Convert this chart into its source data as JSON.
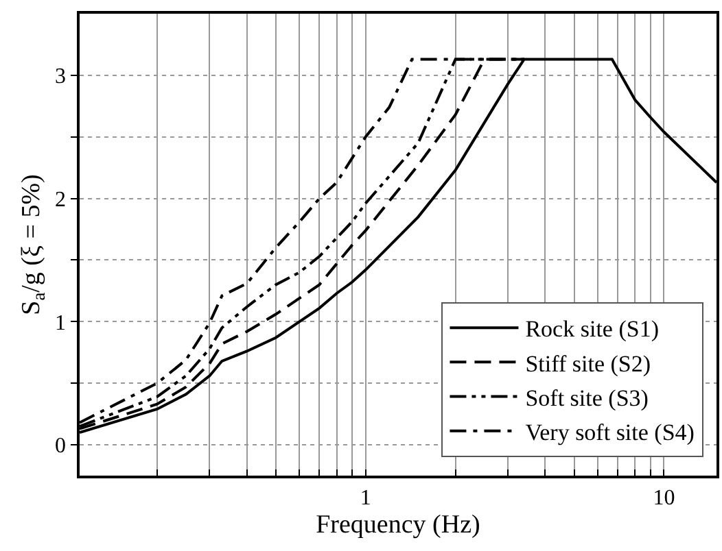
{
  "chart_data": {
    "type": "line",
    "xlabel": "Frequency (Hz)",
    "ylabel": "S$_{a}$/g (ξ = 5%)",
    "log": "x",
    "xlim": [
      0.11,
      15
    ],
    "ylim": [
      -0.25,
      3.5
    ],
    "xticks": [
      {
        "value": 0.2,
        "label": null
      },
      {
        "value": 0.3,
        "label": null
      },
      {
        "value": 0.4,
        "label": null
      },
      {
        "value": 0.5,
        "label": null
      },
      {
        "value": 0.6,
        "label": null
      },
      {
        "value": 0.7,
        "label": null
      },
      {
        "value": 0.8,
        "label": null
      },
      {
        "value": 0.9,
        "label": null
      },
      1,
      {
        "value": 2,
        "label": null
      },
      {
        "value": 3,
        "label": null
      },
      {
        "value": 4,
        "label": null
      },
      {
        "value": 5,
        "label": null
      },
      {
        "value": 6,
        "label": null
      },
      {
        "value": 7,
        "label": null
      },
      {
        "value": 8,
        "label": null
      },
      {
        "value": 9,
        "label": null
      },
      10
    ],
    "yticks": [
      0,
      {
        "value": 0.5,
        "label": null
      },
      1,
      {
        "value": 1.5,
        "label": null
      },
      2,
      {
        "value": 2.5,
        "label": null
      },
      3
    ],
    "grid": true,
    "legend": "bottom right",
    "marker": "none",
    "series": [
      {
        "name": "Rock site (S1)",
        "color": "#000000",
        "line_style": "solid",
        "x": [
          0.11,
          0.2,
          0.25,
          0.3,
          0.33,
          0.4,
          0.5,
          0.6,
          0.7,
          0.8,
          0.9,
          1,
          1.5,
          2,
          3,
          3.4,
          6.7,
          8,
          9,
          10,
          15
        ],
        "values": [
          0.1,
          0.29,
          0.41,
          0.56,
          0.68,
          0.76,
          0.87,
          1.0,
          1.11,
          1.23,
          1.32,
          1.42,
          1.85,
          2.23,
          2.93,
          3.13,
          3.13,
          2.8,
          2.66,
          2.54,
          2.13
        ]
      },
      {
        "name": "Stiff site (S2)",
        "color": "#000000",
        "line_style": "dashed",
        "x": [
          0.11,
          0.2,
          0.25,
          0.3,
          0.33,
          0.4,
          0.5,
          0.6,
          0.7,
          0.8,
          0.9,
          1,
          1.5,
          2,
          2.5,
          3.4
        ],
        "values": [
          0.13,
          0.33,
          0.47,
          0.66,
          0.82,
          0.92,
          1.06,
          1.19,
          1.3,
          1.47,
          1.62,
          1.74,
          2.27,
          2.68,
          3.13,
          3.13
        ]
      },
      {
        "name": "Soft site (S3)",
        "color": "#000000",
        "line_style": "dashdotdot",
        "x": [
          0.11,
          0.2,
          0.25,
          0.3,
          0.33,
          0.4,
          0.5,
          0.6,
          0.7,
          0.8,
          0.9,
          1,
          1.5,
          2,
          3.4
        ],
        "values": [
          0.15,
          0.39,
          0.56,
          0.78,
          0.95,
          1.12,
          1.3,
          1.4,
          1.53,
          1.68,
          1.81,
          1.96,
          2.45,
          3.13,
          3.13
        ]
      },
      {
        "name": "Very soft site (S4)",
        "color": "#000000",
        "line_style": "dashdot",
        "x": [
          0.11,
          0.2,
          0.25,
          0.3,
          0.33,
          0.4,
          0.5,
          0.6,
          0.7,
          0.8,
          1,
          1.2,
          1.43,
          3.4
        ],
        "values": [
          0.18,
          0.5,
          0.69,
          0.99,
          1.21,
          1.31,
          1.6,
          1.81,
          2.0,
          2.13,
          2.5,
          2.74,
          3.13,
          3.13
        ]
      }
    ]
  }
}
